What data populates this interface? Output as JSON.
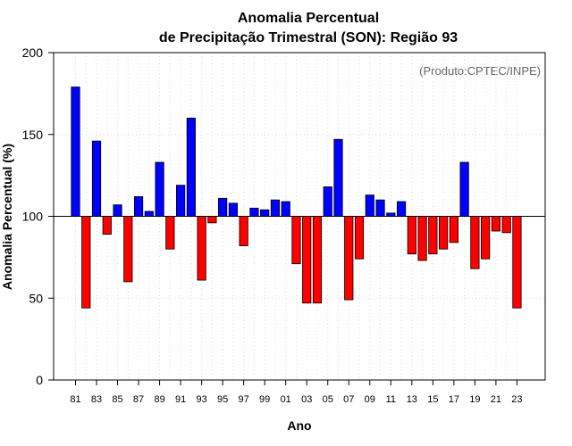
{
  "chart_data": {
    "type": "bar",
    "title_line1": "Anomalia Percentual",
    "title_line2": "de Precipitação Trimestral (SON): Região 93",
    "xlabel": "Ano",
    "ylabel": "Anomalia Percentual (%)",
    "annotation": "(Produto:CPTEC/INPE)",
    "baseline": 100,
    "ylim": [
      0,
      200
    ],
    "yticks": [
      "0",
      "50",
      "100",
      "150",
      "200"
    ],
    "categories": [
      "81",
      "82",
      "83",
      "84",
      "85",
      "86",
      "87",
      "88",
      "89",
      "90",
      "91",
      "92",
      "93",
      "94",
      "95",
      "96",
      "97",
      "98",
      "99",
      "00",
      "01",
      "02",
      "03",
      "04",
      "05",
      "06",
      "07",
      "08",
      "09",
      "10",
      "11",
      "12",
      "13",
      "14",
      "15",
      "16",
      "17",
      "18",
      "19",
      "20",
      "21",
      "22",
      "23"
    ],
    "xtick_labels": [
      "81",
      "83",
      "85",
      "87",
      "89",
      "91",
      "93",
      "95",
      "97",
      "99",
      "01",
      "03",
      "05",
      "07",
      "09",
      "11",
      "13",
      "15",
      "17",
      "19",
      "21",
      "23"
    ],
    "values": [
      179,
      44,
      146,
      89,
      107,
      60,
      112,
      103,
      133,
      80,
      119,
      160,
      61,
      96,
      111,
      108,
      82,
      105,
      104,
      110,
      109,
      71,
      47,
      47,
      118,
      147,
      49,
      74,
      113,
      110,
      102,
      109,
      77,
      73,
      77,
      80,
      84,
      133,
      68,
      74,
      91,
      90,
      44
    ],
    "colors": {
      "above": "#0000ff",
      "below": "#ff0000",
      "grid": "#d9d9d9",
      "axis": "#000000"
    },
    "grid": true
  }
}
